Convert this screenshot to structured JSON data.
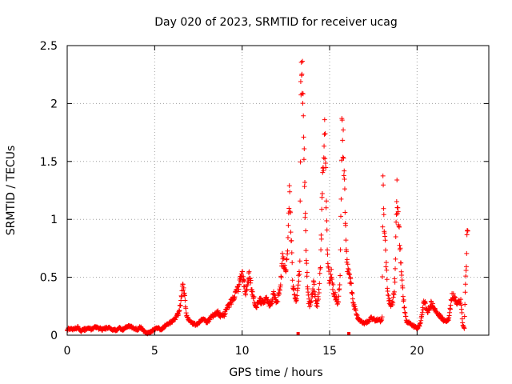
{
  "chart_data": {
    "type": "scatter",
    "title": "Day 020 of 2023, SRMTID for receiver ucag",
    "xlabel": "GPS time / hours",
    "ylabel": "SRMTID / TECUs",
    "xlim": [
      0,
      24.1
    ],
    "ylim": [
      0,
      2.5
    ],
    "x_ticks": [
      0,
      5,
      10,
      15,
      20
    ],
    "y_ticks": [
      0,
      0.5,
      1,
      1.5,
      2,
      2.5
    ],
    "x_tick_labels": [
      "0",
      "5",
      "10",
      "15",
      "20"
    ],
    "y_tick_labels": [
      "0",
      "0.5",
      "1",
      "1.5",
      "2",
      "2.5"
    ],
    "grid": true,
    "marker": "+",
    "color": "#ff0000",
    "series": [
      {
        "name": "ucag",
        "x": [
          0.0,
          0.2,
          0.4,
          0.6,
          0.8,
          1.0,
          1.2,
          1.4,
          1.6,
          1.8,
          2.0,
          2.2,
          2.4,
          2.6,
          2.8,
          3.0,
          3.2,
          3.4,
          3.6,
          3.8,
          4.0,
          4.2,
          4.4,
          4.6,
          4.8,
          5.0,
          5.2,
          5.4,
          5.6,
          5.8,
          6.0,
          6.2,
          6.4,
          6.5,
          6.6,
          6.7,
          6.8,
          7.0,
          7.2,
          7.4,
          7.6,
          7.8,
          8.0,
          8.2,
          8.4,
          8.6,
          8.8,
          9.0,
          9.2,
          9.4,
          9.6,
          9.8,
          9.9,
          10.0,
          10.1,
          10.2,
          10.3,
          10.4,
          10.5,
          10.6,
          10.8,
          11.0,
          11.2,
          11.4,
          11.6,
          11.8,
          12.0,
          12.1,
          12.2,
          12.3,
          12.4,
          12.5,
          12.6,
          12.7,
          12.8,
          12.9,
          13.0,
          13.1,
          13.2,
          13.3,
          13.35,
          13.4,
          13.45,
          13.5,
          13.55,
          13.6,
          13.65,
          13.7,
          13.75,
          13.8,
          13.9,
          14.0,
          14.1,
          14.2,
          14.3,
          14.4,
          14.5,
          14.55,
          14.6,
          14.65,
          14.7,
          14.75,
          14.8,
          14.85,
          14.9,
          15.0,
          15.1,
          15.2,
          15.3,
          15.4,
          15.5,
          15.6,
          15.7,
          15.8,
          15.85,
          15.9,
          15.95,
          16.0,
          16.1,
          16.2,
          16.3,
          16.4,
          16.5,
          16.6,
          16.8,
          17.0,
          17.2,
          17.4,
          17.6,
          17.8,
          17.9,
          18.0,
          18.05,
          18.1,
          18.2,
          18.3,
          18.4,
          18.5,
          18.6,
          18.7,
          18.75,
          18.8,
          18.85,
          18.9,
          19.0,
          19.1,
          19.2,
          19.3,
          19.4,
          19.6,
          19.8,
          20.0,
          20.2,
          20.4,
          20.5,
          20.6,
          20.8,
          21.0,
          21.2,
          21.4,
          21.6,
          21.8,
          22.0,
          22.2,
          22.3,
          22.4,
          22.5,
          22.6,
          22.7,
          22.75,
          22.8,
          22.85,
          22.9
        ],
        "y": [
          0.05,
          0.06,
          0.05,
          0.07,
          0.04,
          0.05,
          0.06,
          0.05,
          0.07,
          0.06,
          0.05,
          0.06,
          0.07,
          0.05,
          0.04,
          0.06,
          0.05,
          0.07,
          0.08,
          0.06,
          0.05,
          0.07,
          0.03,
          0.02,
          0.03,
          0.05,
          0.06,
          0.05,
          0.08,
          0.1,
          0.12,
          0.15,
          0.2,
          0.3,
          0.42,
          0.35,
          0.18,
          0.12,
          0.1,
          0.09,
          0.12,
          0.14,
          0.11,
          0.15,
          0.18,
          0.2,
          0.16,
          0.18,
          0.25,
          0.3,
          0.35,
          0.42,
          0.5,
          0.55,
          0.45,
          0.38,
          0.42,
          0.55,
          0.45,
          0.35,
          0.25,
          0.3,
          0.28,
          0.32,
          0.25,
          0.35,
          0.28,
          0.35,
          0.45,
          0.68,
          0.62,
          0.55,
          0.7,
          1.3,
          0.85,
          0.4,
          0.35,
          0.3,
          0.45,
          0.6,
          2.1,
          2.34,
          2.2,
          1.9,
          1.5,
          1.1,
          0.75,
          0.55,
          0.4,
          0.3,
          0.25,
          0.35,
          0.45,
          0.3,
          0.25,
          0.4,
          0.7,
          1.0,
          1.3,
          1.55,
          1.78,
          1.6,
          1.2,
          0.85,
          0.6,
          0.45,
          0.55,
          0.4,
          0.35,
          0.3,
          0.28,
          0.5,
          1.76,
          1.6,
          1.25,
          1.0,
          0.8,
          0.6,
          0.55,
          0.45,
          0.35,
          0.25,
          0.2,
          0.15,
          0.12,
          0.1,
          0.12,
          0.15,
          0.13,
          0.14,
          0.12,
          0.15,
          1.35,
          1.0,
          0.7,
          0.4,
          0.3,
          0.25,
          0.28,
          0.4,
          0.55,
          0.9,
          1.24,
          1.1,
          0.8,
          0.55,
          0.35,
          0.2,
          0.12,
          0.1,
          0.08,
          0.06,
          0.1,
          0.3,
          0.25,
          0.2,
          0.28,
          0.22,
          0.18,
          0.15,
          0.12,
          0.14,
          0.35,
          0.3,
          0.27,
          0.28,
          0.3,
          0.1,
          0.06,
          0.35,
          0.55,
          0.8,
          0.9
        ],
        "outliers_x": [
          13.2,
          16.1
        ],
        "outliers_y": [
          0.0,
          0.0
        ]
      }
    ]
  }
}
